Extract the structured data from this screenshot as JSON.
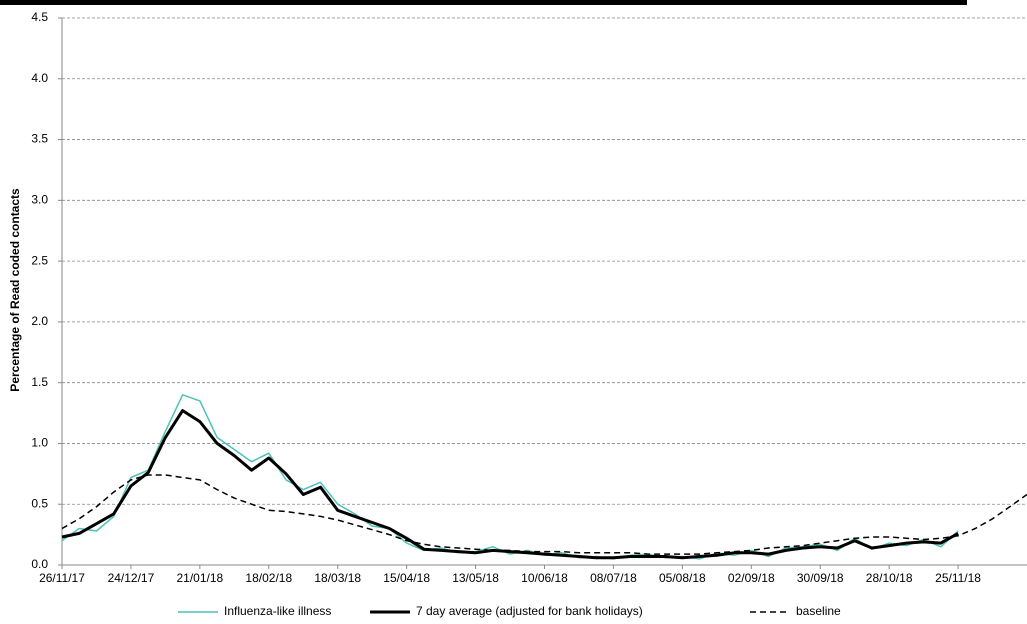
{
  "chart_data": {
    "type": "line",
    "y_label": "Percentage of Read coded contacts",
    "x": [
      "26/11/17",
      "03/12/17",
      "10/12/17",
      "17/12/17",
      "24/12/17",
      "31/12/17",
      "07/01/18",
      "14/01/18",
      "21/01/18",
      "28/01/18",
      "04/02/18",
      "11/02/18",
      "18/02/18",
      "25/02/18",
      "04/03/18",
      "11/03/18",
      "18/03/18",
      "25/03/18",
      "01/04/18",
      "08/04/18",
      "15/04/18",
      "22/04/18",
      "29/04/18",
      "06/05/18",
      "13/05/18",
      "20/05/18",
      "27/05/18",
      "03/06/18",
      "10/06/18",
      "17/06/18",
      "24/06/18",
      "01/07/18",
      "08/07/18",
      "15/07/18",
      "22/07/18",
      "29/07/18",
      "05/08/18",
      "12/08/18",
      "19/08/18",
      "26/08/18",
      "02/09/18",
      "09/09/18",
      "16/09/18",
      "23/09/18",
      "30/09/18",
      "07/10/18",
      "14/10/18",
      "21/10/18",
      "28/10/18",
      "04/11/18",
      "11/11/18",
      "18/11/18",
      "25/11/18",
      "02/12/18",
      "09/12/18",
      "16/12/18",
      "23/12/18"
    ],
    "series": [
      {
        "name": "Influenza-like illness",
        "color": "#4fc1b8",
        "width": 1.5,
        "dash": false,
        "values": [
          0.2,
          0.3,
          0.28,
          0.4,
          0.72,
          0.78,
          1.1,
          1.4,
          1.35,
          1.05,
          0.95,
          0.85,
          0.92,
          0.7,
          0.62,
          0.68,
          0.5,
          0.42,
          0.32,
          0.3,
          0.18,
          0.12,
          0.14,
          0.1,
          0.11,
          0.15,
          0.09,
          0.12,
          0.08,
          0.1,
          0.06,
          0.07,
          0.05,
          0.08,
          0.09,
          0.06,
          0.07,
          0.05,
          0.1,
          0.08,
          0.12,
          0.07,
          0.14,
          0.15,
          0.17,
          0.12,
          0.22,
          0.13,
          0.18,
          0.16,
          0.21,
          0.15,
          0.28,
          null,
          null,
          null,
          null
        ]
      },
      {
        "name": "7 day average (adjusted for bank holidays)",
        "color": "#000000",
        "width": 3,
        "dash": false,
        "values": [
          0.23,
          0.26,
          0.34,
          0.42,
          0.65,
          0.76,
          1.05,
          1.27,
          1.18,
          1.0,
          0.9,
          0.78,
          0.88,
          0.75,
          0.58,
          0.64,
          0.45,
          0.4,
          0.35,
          0.3,
          0.22,
          0.13,
          0.12,
          0.11,
          0.1,
          0.12,
          0.11,
          0.1,
          0.09,
          0.08,
          0.07,
          0.06,
          0.06,
          0.07,
          0.07,
          0.07,
          0.06,
          0.07,
          0.08,
          0.1,
          0.1,
          0.09,
          0.12,
          0.14,
          0.15,
          0.14,
          0.2,
          0.14,
          0.16,
          0.18,
          0.19,
          0.18,
          0.26,
          null,
          null,
          null,
          null
        ]
      },
      {
        "name": "baseline",
        "color": "#000000",
        "width": 1.5,
        "dash": true,
        "values": [
          0.3,
          0.38,
          0.48,
          0.6,
          0.7,
          0.74,
          0.74,
          0.72,
          0.7,
          0.62,
          0.55,
          0.5,
          0.45,
          0.44,
          0.42,
          0.4,
          0.37,
          0.33,
          0.29,
          0.25,
          0.2,
          0.17,
          0.15,
          0.14,
          0.13,
          0.12,
          0.12,
          0.11,
          0.11,
          0.11,
          0.1,
          0.1,
          0.1,
          0.1,
          0.09,
          0.09,
          0.09,
          0.09,
          0.1,
          0.11,
          0.12,
          0.14,
          0.15,
          0.16,
          0.18,
          0.2,
          0.22,
          0.23,
          0.23,
          0.22,
          0.21,
          0.22,
          0.24,
          0.3,
          0.38,
          0.48,
          0.58
        ]
      }
    ],
    "xlim": [
      "26/11/17",
      "23/12/18"
    ],
    "xticks": [
      "26/11/17",
      "24/12/17",
      "21/01/18",
      "18/02/18",
      "18/03/18",
      "15/04/18",
      "13/05/18",
      "10/06/18",
      "08/07/18",
      "05/08/18",
      "02/09/18",
      "30/09/18",
      "28/10/18",
      "25/11/18"
    ],
    "ylim": [
      0,
      4.5
    ],
    "yticks": [
      {
        "value": 0,
        "label": "0.0"
      },
      {
        "value": 0.5,
        "label": "0.5"
      },
      {
        "value": 1,
        "label": "1.0"
      },
      {
        "value": 1.5,
        "label": "1.5"
      },
      {
        "value": 2,
        "label": "2.0"
      },
      {
        "value": 2.5,
        "label": "2.5"
      },
      {
        "value": 3,
        "label": "3.0"
      },
      {
        "value": 3.5,
        "label": "3.5"
      },
      {
        "value": 4,
        "label": "4.0"
      },
      {
        "value": 4.5,
        "label": "4.5"
      }
    ],
    "grid": true,
    "legend": "bottom"
  }
}
